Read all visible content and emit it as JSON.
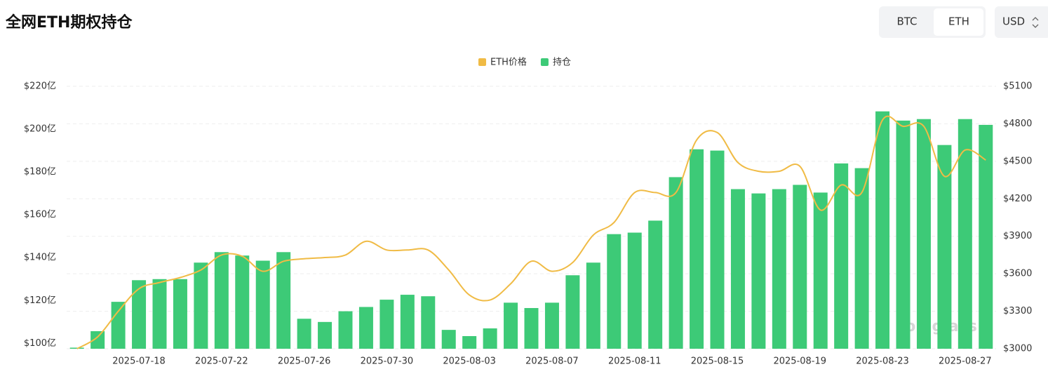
{
  "header": {
    "title": "全网ETH期权持仓"
  },
  "controls": {
    "coins": [
      "BTC",
      "ETH"
    ],
    "currency": "USD"
  },
  "watermark": "coinglass",
  "chart_data": {
    "type": "bar_line",
    "categories": [
      null,
      null,
      null,
      "2025-07-18",
      null,
      null,
      null,
      "2025-07-22",
      null,
      null,
      null,
      "2025-07-26",
      null,
      null,
      null,
      "2025-07-30",
      null,
      null,
      null,
      "2025-08-03",
      null,
      null,
      null,
      "2025-08-07",
      null,
      null,
      null,
      "2025-08-11",
      null,
      null,
      null,
      "2025-08-15",
      null,
      null,
      null,
      "2025-08-19",
      null,
      null,
      null,
      "2025-08-23",
      null,
      null,
      null,
      "2025-08-27",
      null
    ],
    "series": [
      {
        "name": "ETH价格",
        "color": "#f0bb45",
        "axis": "y2",
        "values": [
          3000,
          3095,
          3300,
          3480,
          3530,
          3570,
          3630,
          3750,
          3740,
          3620,
          3700,
          3720,
          3730,
          3750,
          3860,
          3790,
          3790,
          3790,
          3630,
          3430,
          3390,
          3520,
          3700,
          3620,
          3690,
          3910,
          4010,
          4250,
          4250,
          4250,
          4670,
          4730,
          4490,
          4420,
          4420,
          4460,
          4110,
          4310,
          4250,
          4830,
          4780,
          4780,
          4380,
          4590,
          4510
        ]
      },
      {
        "name": "持仓",
        "color": "#3dca77",
        "axis": "y",
        "values": [
          98,
          105.7,
          119.4,
          129.5,
          130,
          130,
          137.7,
          142.6,
          141,
          138.6,
          142.6,
          111.5,
          110,
          115,
          117,
          120.4,
          122.7,
          122,
          106.3,
          103.4,
          107,
          119,
          116.5,
          119,
          131.8,
          137.7,
          151,
          151.7,
          157.3,
          177.6,
          190.6,
          190,
          172,
          170,
          172,
          174,
          170.4,
          184,
          181.8,
          208.3,
          204,
          204.7,
          192.6,
          204.7,
          202
        ]
      }
    ],
    "ylim": [
      97.5,
      220
    ],
    "yticks": [
      {
        "value": 100,
        "label": "$100亿"
      },
      {
        "value": 120,
        "label": "$120亿"
      },
      {
        "value": 140,
        "label": "$140亿"
      },
      {
        "value": 160,
        "label": "$160亿"
      },
      {
        "value": 180,
        "label": "$180亿"
      },
      {
        "value": 200,
        "label": "$200亿"
      },
      {
        "value": 220,
        "label": "$220亿"
      }
    ],
    "y2lim": [
      3000,
      5100
    ],
    "y2ticks": [
      {
        "value": 3000,
        "label": "$3000"
      },
      {
        "value": 3300,
        "label": "$3300"
      },
      {
        "value": 3600,
        "label": "$3600"
      },
      {
        "value": 3900,
        "label": "$3900"
      },
      {
        "value": 4200,
        "label": "$4200"
      },
      {
        "value": 4500,
        "label": "$4500"
      },
      {
        "value": 4800,
        "label": "$4800"
      },
      {
        "value": 5100,
        "label": "$5100"
      }
    ],
    "grid": true,
    "legend": "top"
  }
}
